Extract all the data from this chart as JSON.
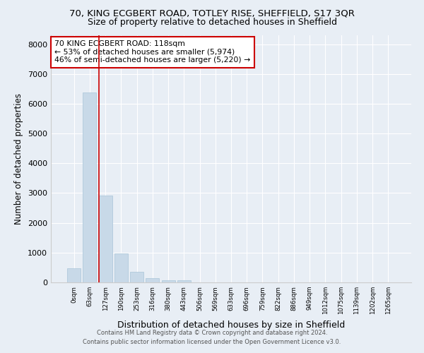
{
  "title1": "70, KING ECGBERT ROAD, TOTLEY RISE, SHEFFIELD, S17 3QR",
  "title2": "Size of property relative to detached houses in Sheffield",
  "xlabel": "Distribution of detached houses by size in Sheffield",
  "ylabel": "Number of detached properties",
  "categories": [
    "0sqm",
    "63sqm",
    "127sqm",
    "190sqm",
    "253sqm",
    "316sqm",
    "380sqm",
    "443sqm",
    "506sqm",
    "569sqm",
    "633sqm",
    "696sqm",
    "759sqm",
    "822sqm",
    "886sqm",
    "949sqm",
    "1012sqm",
    "1075sqm",
    "1139sqm",
    "1202sqm",
    "1265sqm"
  ],
  "values": [
    480,
    6380,
    2920,
    980,
    350,
    140,
    80,
    60,
    0,
    0,
    0,
    0,
    0,
    0,
    0,
    0,
    0,
    0,
    0,
    0,
    0
  ],
  "bar_color": "#c8d9e8",
  "bar_edge_color": "#a8c4d8",
  "vline_color": "#cc0000",
  "annotation_text": "70 KING ECGBERT ROAD: 118sqm\n← 53% of detached houses are smaller (5,974)\n46% of semi-detached houses are larger (5,220) →",
  "annotation_box_color": "white",
  "annotation_box_edge_color": "#cc0000",
  "ylim": [
    0,
    8300
  ],
  "yticks": [
    0,
    1000,
    2000,
    3000,
    4000,
    5000,
    6000,
    7000,
    8000
  ],
  "footer1": "Contains HM Land Registry data © Crown copyright and database right 2024.",
  "footer2": "Contains public sector information licensed under the Open Government Licence v3.0.",
  "bg_color": "#e8eef5",
  "plot_bg_color": "#e8eef5",
  "grid_color": "white",
  "title1_fontsize": 9.5,
  "title2_fontsize": 9,
  "xlabel_fontsize": 9,
  "ylabel_fontsize": 8.5
}
